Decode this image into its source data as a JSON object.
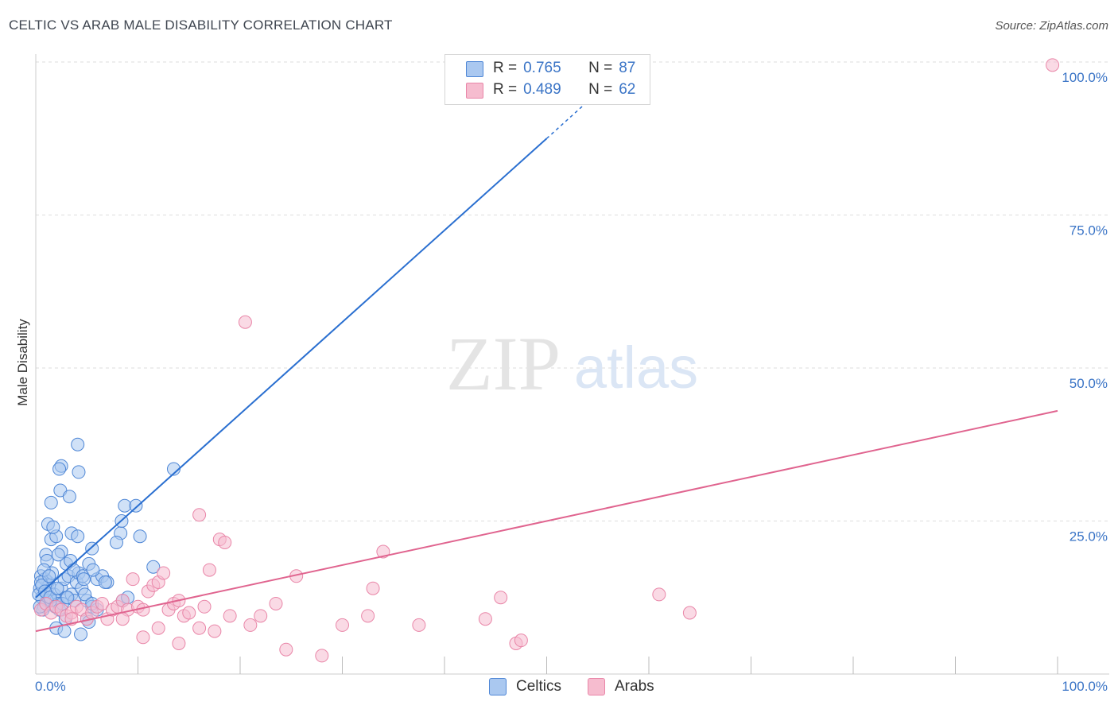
{
  "title": "CELTIC VS ARAB MALE DISABILITY CORRELATION CHART",
  "source": "Source: ZipAtlas.com",
  "watermark": {
    "zip": "ZIP",
    "atlas": "atlas"
  },
  "colors": {
    "blue_fill": "#aac8f0",
    "blue_stroke": "#4f87d6",
    "blue_line": "#2a6fd0",
    "pink_fill": "#f6bccf",
    "pink_stroke": "#e986a8",
    "pink_line": "#e0648f",
    "tick_text": "#3a74c6",
    "grid": "#dddddd"
  },
  "legend": {
    "rows": [
      {
        "r_label": "R =",
        "r_value": "0.765",
        "n_label": "N =",
        "n_value": "87"
      },
      {
        "r_label": "R =",
        "r_value": "0.489",
        "n_label": "N =",
        "n_value": "62"
      }
    ]
  },
  "chart_data": {
    "type": "scatter",
    "title": "CELTIC VS ARAB MALE DISABILITY CORRELATION CHART",
    "xlabel": "",
    "ylabel": "Male Disability",
    "xlim": [
      0,
      100
    ],
    "ylim": [
      0,
      100
    ],
    "x_tick_labels": [
      "0.0%",
      "100.0%"
    ],
    "y_ticks": [
      25,
      50,
      75,
      100
    ],
    "y_tick_labels": [
      "25.0%",
      "50.0%",
      "75.0%",
      "100.0%"
    ],
    "grid": true,
    "series": [
      {
        "name": "Celtics",
        "r": 0.765,
        "n": 87,
        "trend": {
          "x0": 0,
          "y0": 12.5,
          "x1": 50,
          "y1": 87.5,
          "dashed_to_x": 56.5,
          "dashed_to_y": 97.3
        },
        "points": [
          [
            0.4,
            14
          ],
          [
            0.6,
            12.5
          ],
          [
            0.8,
            11
          ],
          [
            1.0,
            13.5
          ],
          [
            1.2,
            15
          ],
          [
            0.5,
            16
          ],
          [
            0.9,
            15.5
          ],
          [
            1.3,
            14.5
          ],
          [
            1.5,
            12
          ],
          [
            0.7,
            10.5
          ],
          [
            1.8,
            13
          ],
          [
            2.0,
            12
          ],
          [
            2.2,
            11.5
          ],
          [
            1.6,
            16.5
          ],
          [
            2.5,
            14
          ],
          [
            3.0,
            12.5
          ],
          [
            3.5,
            13
          ],
          [
            2.8,
            15.5
          ],
          [
            3.2,
            16
          ],
          [
            4.0,
            15
          ],
          [
            1.0,
            19.5
          ],
          [
            1.5,
            22
          ],
          [
            2.0,
            22.5
          ],
          [
            1.2,
            24.5
          ],
          [
            1.7,
            24
          ],
          [
            2.5,
            20
          ],
          [
            3.0,
            18
          ],
          [
            2.2,
            19.5
          ],
          [
            3.4,
            18.5
          ],
          [
            4.2,
            16.5
          ],
          [
            1.5,
            28
          ],
          [
            2.4,
            30
          ],
          [
            3.3,
            29
          ],
          [
            2.5,
            34
          ],
          [
            2.3,
            33.5
          ],
          [
            4.2,
            33
          ],
          [
            4.1,
            37.5
          ],
          [
            3.5,
            23
          ],
          [
            4.1,
            22.5
          ],
          [
            5.5,
            20.5
          ],
          [
            5.2,
            18
          ],
          [
            6.0,
            15.5
          ],
          [
            6.5,
            16
          ],
          [
            7.0,
            15
          ],
          [
            4.5,
            14
          ],
          [
            5.0,
            12
          ],
          [
            5.5,
            11
          ],
          [
            2.0,
            7.5
          ],
          [
            2.8,
            7
          ],
          [
            4.4,
            6.5
          ],
          [
            2.9,
            9
          ],
          [
            5.0,
            9
          ],
          [
            5.2,
            8.5
          ],
          [
            6.0,
            10.5
          ],
          [
            8.5,
            12
          ],
          [
            9.0,
            12.5
          ],
          [
            8.3,
            23
          ],
          [
            8.4,
            25
          ],
          [
            7.9,
            21.5
          ],
          [
            8.7,
            27.5
          ],
          [
            9.8,
            27.5
          ],
          [
            10.2,
            22.5
          ],
          [
            11.5,
            17.5
          ],
          [
            13.5,
            33.5
          ],
          [
            1.1,
            12
          ],
          [
            0.3,
            13
          ],
          [
            0.5,
            15
          ],
          [
            0.6,
            14.5
          ],
          [
            0.9,
            13.5
          ],
          [
            1.4,
            12.5
          ],
          [
            1.9,
            11
          ],
          [
            2.3,
            10.5
          ],
          [
            2.6,
            11.5
          ],
          [
            1.1,
            18.5
          ],
          [
            0.8,
            17
          ],
          [
            3.7,
            17
          ],
          [
            4.6,
            16
          ],
          [
            5.6,
            17
          ],
          [
            3.8,
            12
          ],
          [
            2.1,
            14
          ],
          [
            0.4,
            11
          ],
          [
            1.3,
            16
          ],
          [
            4.8,
            13
          ],
          [
            5.5,
            11.5
          ],
          [
            3.1,
            12.5
          ],
          [
            4.7,
            15.5
          ],
          [
            6.8,
            15
          ]
        ]
      },
      {
        "name": "Arabs",
        "r": 0.489,
        "n": 62,
        "trend": {
          "x0": 0,
          "y0": 7,
          "x1": 100,
          "y1": 43
        },
        "points": [
          [
            0.5,
            10.5
          ],
          [
            1.0,
            11.5
          ],
          [
            1.5,
            10
          ],
          [
            2.0,
            11
          ],
          [
            2.5,
            10.5
          ],
          [
            3.0,
            9.5
          ],
          [
            3.5,
            10
          ],
          [
            4.0,
            11
          ],
          [
            4.5,
            10.5
          ],
          [
            5.0,
            9
          ],
          [
            5.5,
            10
          ],
          [
            6.0,
            11
          ],
          [
            6.5,
            11.5
          ],
          [
            7.0,
            9
          ],
          [
            7.5,
            10.5
          ],
          [
            8.0,
            11
          ],
          [
            8.5,
            12
          ],
          [
            9.0,
            10.5
          ],
          [
            9.5,
            15.5
          ],
          [
            10.0,
            11
          ],
          [
            10.5,
            10.5
          ],
          [
            11.0,
            13.5
          ],
          [
            11.5,
            14.5
          ],
          [
            12.0,
            15
          ],
          [
            12.5,
            16.5
          ],
          [
            13.0,
            10.5
          ],
          [
            13.5,
            11.5
          ],
          [
            14.0,
            12
          ],
          [
            14.5,
            9.5
          ],
          [
            15.0,
            10
          ],
          [
            16.0,
            7.5
          ],
          [
            16.5,
            11
          ],
          [
            17.0,
            17
          ],
          [
            17.5,
            7
          ],
          [
            18.0,
            22
          ],
          [
            18.5,
            21.5
          ],
          [
            19.0,
            9.5
          ],
          [
            20.5,
            57.5
          ],
          [
            21.0,
            8
          ],
          [
            22.0,
            9.5
          ],
          [
            23.5,
            11.5
          ],
          [
            24.5,
            4
          ],
          [
            25.5,
            16
          ],
          [
            28.0,
            3
          ],
          [
            30.0,
            8
          ],
          [
            32.5,
            9.5
          ],
          [
            33.0,
            14
          ],
          [
            34.0,
            20
          ],
          [
            37.5,
            8
          ],
          [
            44.0,
            9
          ],
          [
            45.5,
            12.5
          ],
          [
            47.0,
            5
          ],
          [
            47.5,
            5.5
          ],
          [
            61.0,
            13
          ],
          [
            64.0,
            10
          ],
          [
            14.0,
            5
          ],
          [
            12.0,
            7.5
          ],
          [
            10.5,
            6
          ],
          [
            8.5,
            9
          ],
          [
            16.0,
            26
          ],
          [
            3.5,
            9
          ],
          [
            99.5,
            99.5
          ]
        ]
      }
    ]
  },
  "bottom_legend": [
    {
      "label": "Celtics"
    },
    {
      "label": "Arabs"
    }
  ]
}
